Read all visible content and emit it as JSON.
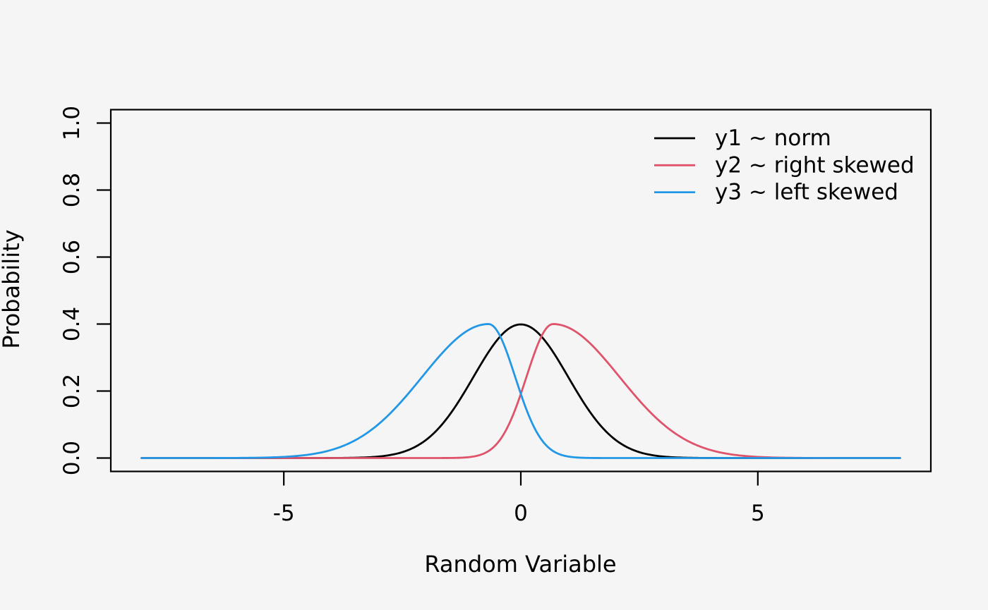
{
  "page": {
    "background": "#f5f5f5"
  },
  "chart_data": {
    "type": "line",
    "title": "",
    "xlabel": "Random Variable",
    "ylabel": "Probability",
    "xlim": [
      -8.65,
      8.65
    ],
    "ylim": [
      -0.04,
      1.04
    ],
    "grid": false,
    "legend_position": "top-right",
    "axis_color": "#000000",
    "text_color": "#000000",
    "curve_x_range": [
      -8,
      8
    ],
    "x_ticks": [
      {
        "value": -5,
        "label": "-5"
      },
      {
        "value": 0,
        "label": "0"
      },
      {
        "value": 5,
        "label": "5"
      }
    ],
    "y_ticks": [
      {
        "value": 0.0,
        "label": "0.0"
      },
      {
        "value": 0.2,
        "label": "0.2"
      },
      {
        "value": 0.4,
        "label": "0.4"
      },
      {
        "value": 0.6,
        "label": "0.6"
      },
      {
        "value": 0.8,
        "label": "0.8"
      },
      {
        "value": 1.0,
        "label": "1.0"
      }
    ],
    "series": [
      {
        "name": "y1 ~ norm",
        "color": "#000000",
        "peak": {
          "x": 0,
          "y": 0.399
        },
        "model": {
          "kind": "gaussian",
          "mean": 0,
          "sd": 1
        }
      },
      {
        "name": "y2 ~ right skewed",
        "color": "#DF536B",
        "peak": {
          "x": 0.68,
          "y": 0.4
        },
        "model": {
          "kind": "split_gaussian",
          "mode": 0.68,
          "sigma_left": 0.56,
          "sigma_right": 1.4,
          "peak": 0.4
        }
      },
      {
        "name": "y3 ~ left skewed",
        "color": "#2297E6",
        "peak": {
          "x": -0.68,
          "y": 0.4
        },
        "model": {
          "kind": "split_gaussian",
          "mode": -0.68,
          "sigma_left": 1.4,
          "sigma_right": 0.56,
          "peak": 0.4
        }
      }
    ]
  }
}
